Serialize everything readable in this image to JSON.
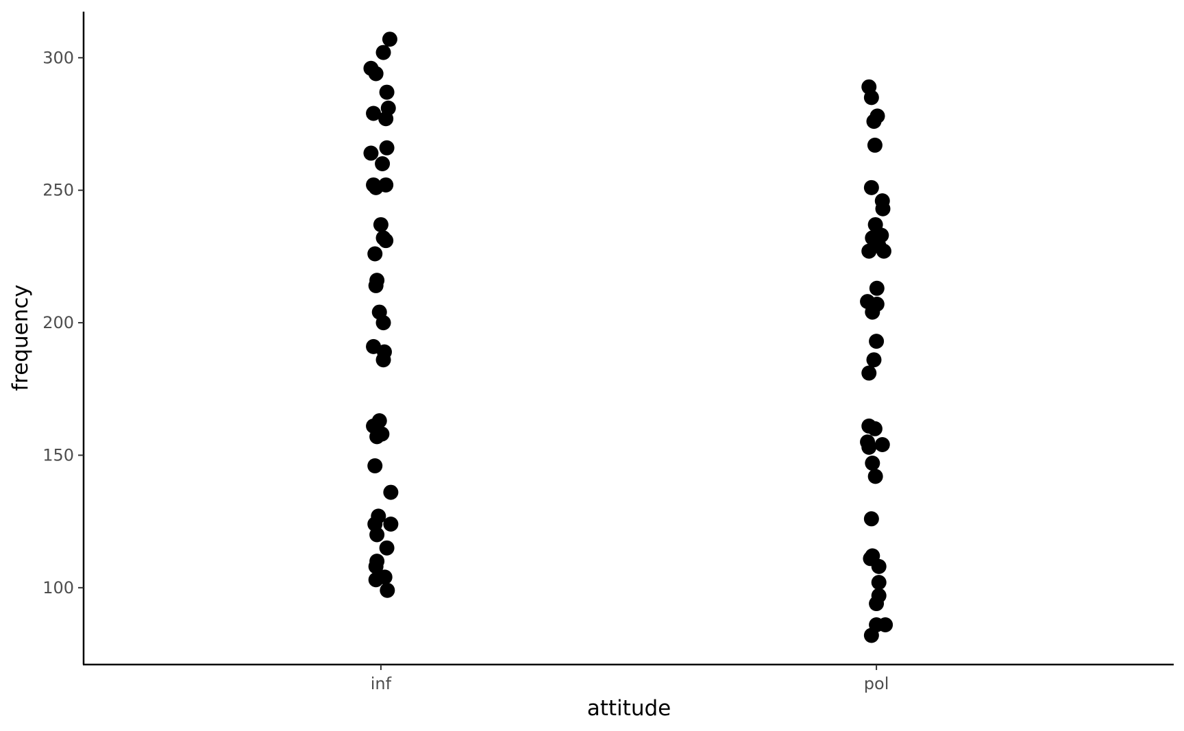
{
  "chart_data": {
    "type": "scatter",
    "title": "",
    "xlabel": "attitude",
    "ylabel": "frequency",
    "categories": [
      "inf",
      "pol"
    ],
    "ylim": [
      71,
      317.4
    ],
    "yticks": [
      100,
      150,
      200,
      250,
      300
    ],
    "grid": false,
    "legend": "none",
    "point_color": "#000000",
    "points": {
      "inf": [
        {
          "jitter": 0.018,
          "y": 307
        },
        {
          "jitter": 0.005,
          "y": 302
        },
        {
          "jitter": -0.02,
          "y": 296
        },
        {
          "jitter": -0.01,
          "y": 294
        },
        {
          "jitter": 0.012,
          "y": 287
        },
        {
          "jitter": 0.015,
          "y": 281
        },
        {
          "jitter": -0.015,
          "y": 279
        },
        {
          "jitter": 0.01,
          "y": 277
        },
        {
          "jitter": 0.012,
          "y": 266
        },
        {
          "jitter": -0.02,
          "y": 264
        },
        {
          "jitter": 0.003,
          "y": 260
        },
        {
          "jitter": -0.015,
          "y": 252
        },
        {
          "jitter": 0.01,
          "y": 252
        },
        {
          "jitter": -0.01,
          "y": 251
        },
        {
          "jitter": 0.0,
          "y": 237
        },
        {
          "jitter": 0.005,
          "y": 232
        },
        {
          "jitter": 0.01,
          "y": 231
        },
        {
          "jitter": -0.012,
          "y": 226
        },
        {
          "jitter": -0.008,
          "y": 216
        },
        {
          "jitter": -0.01,
          "y": 214
        },
        {
          "jitter": -0.003,
          "y": 204
        },
        {
          "jitter": 0.005,
          "y": 200
        },
        {
          "jitter": -0.015,
          "y": 191
        },
        {
          "jitter": 0.007,
          "y": 189
        },
        {
          "jitter": 0.005,
          "y": 186
        },
        {
          "jitter": -0.003,
          "y": 163
        },
        {
          "jitter": -0.015,
          "y": 161
        },
        {
          "jitter": 0.002,
          "y": 158
        },
        {
          "jitter": -0.008,
          "y": 157
        },
        {
          "jitter": -0.012,
          "y": 146
        },
        {
          "jitter": 0.02,
          "y": 136
        },
        {
          "jitter": -0.005,
          "y": 127
        },
        {
          "jitter": 0.02,
          "y": 124
        },
        {
          "jitter": -0.012,
          "y": 124
        },
        {
          "jitter": -0.008,
          "y": 120
        },
        {
          "jitter": 0.012,
          "y": 115
        },
        {
          "jitter": -0.008,
          "y": 110
        },
        {
          "jitter": -0.01,
          "y": 108
        },
        {
          "jitter": 0.008,
          "y": 104
        },
        {
          "jitter": -0.01,
          "y": 103
        },
        {
          "jitter": 0.013,
          "y": 99
        }
      ],
      "pol": [
        {
          "jitter": -0.015,
          "y": 289
        },
        {
          "jitter": -0.01,
          "y": 285
        },
        {
          "jitter": 0.002,
          "y": 278
        },
        {
          "jitter": -0.005,
          "y": 276
        },
        {
          "jitter": -0.003,
          "y": 267
        },
        {
          "jitter": -0.01,
          "y": 251
        },
        {
          "jitter": 0.012,
          "y": 246
        },
        {
          "jitter": 0.013,
          "y": 243
        },
        {
          "jitter": -0.002,
          "y": 237
        },
        {
          "jitter": 0.01,
          "y": 233
        },
        {
          "jitter": -0.008,
          "y": 232
        },
        {
          "jitter": 0.005,
          "y": 229
        },
        {
          "jitter": -0.015,
          "y": 227
        },
        {
          "jitter": 0.015,
          "y": 227
        },
        {
          "jitter": 0.001,
          "y": 213
        },
        {
          "jitter": -0.018,
          "y": 208
        },
        {
          "jitter": 0.001,
          "y": 207
        },
        {
          "jitter": -0.008,
          "y": 204
        },
        {
          "jitter": 0.0,
          "y": 193
        },
        {
          "jitter": -0.005,
          "y": 186
        },
        {
          "jitter": -0.015,
          "y": 181
        },
        {
          "jitter": -0.015,
          "y": 161
        },
        {
          "jitter": -0.003,
          "y": 160
        },
        {
          "jitter": -0.018,
          "y": 155
        },
        {
          "jitter": 0.012,
          "y": 154
        },
        {
          "jitter": -0.015,
          "y": 153
        },
        {
          "jitter": -0.008,
          "y": 147
        },
        {
          "jitter": -0.002,
          "y": 142
        },
        {
          "jitter": -0.01,
          "y": 126
        },
        {
          "jitter": -0.008,
          "y": 112
        },
        {
          "jitter": -0.012,
          "y": 111
        },
        {
          "jitter": 0.005,
          "y": 108
        },
        {
          "jitter": 0.005,
          "y": 102
        },
        {
          "jitter": 0.005,
          "y": 97
        },
        {
          "jitter": 0.0,
          "y": 94
        },
        {
          "jitter": 0.0,
          "y": 86
        },
        {
          "jitter": 0.018,
          "y": 86
        },
        {
          "jitter": -0.01,
          "y": 82
        }
      ]
    }
  }
}
